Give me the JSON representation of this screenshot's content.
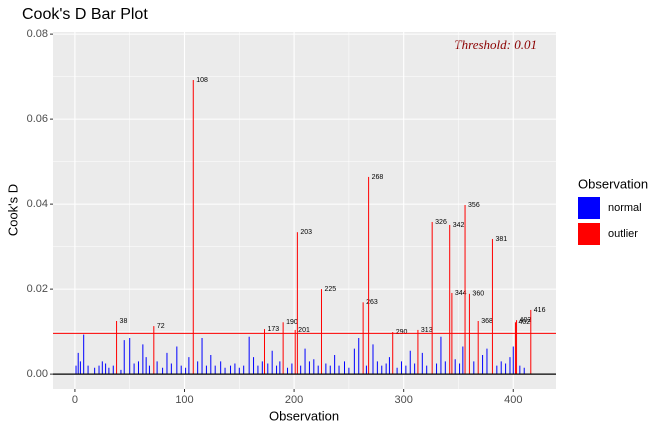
{
  "chart_data": {
    "type": "bar",
    "title": "Cook's D Bar Plot",
    "x_label": "Observation",
    "y_label": "Cook's D",
    "annotation": "Threshold: 0.01",
    "threshold": 0.0096,
    "threshold_color": "#ff0000",
    "baseline": 0,
    "legend_title": "Observation",
    "grid": true,
    "xlim": [
      -20,
      439
    ],
    "xticks": [
      0,
      100,
      200,
      300,
      400
    ],
    "ylim": [
      -0.0035,
      0.0805
    ],
    "yticks": [
      {
        "value": 0,
        "label": "0.00"
      },
      {
        "value": 0.02,
        "label": "0.02"
      },
      {
        "value": 0.04,
        "label": "0.04"
      },
      {
        "value": 0.06,
        "label": "0.06"
      },
      {
        "value": 0.08,
        "label": "0.08"
      }
    ],
    "series": [
      {
        "name": "normal",
        "color": "#0000ff",
        "x": [
          1,
          3,
          5,
          8,
          12,
          18,
          22,
          25,
          28,
          31,
          35,
          42,
          45,
          50,
          54,
          58,
          62,
          65,
          68,
          75,
          80,
          84,
          88,
          93,
          97,
          101,
          104,
          112,
          116,
          120,
          124,
          128,
          133,
          137,
          142,
          146,
          150,
          154,
          159,
          163,
          167,
          171,
          176,
          180,
          184,
          187,
          194,
          198,
          206,
          210,
          214,
          218,
          222,
          229,
          233,
          237,
          241,
          246,
          250,
          255,
          259,
          266,
          272,
          276,
          280,
          284,
          287,
          294,
          298,
          302,
          306,
          310,
          317,
          321,
          330,
          334,
          338,
          347,
          351,
          354,
          364,
          372,
          376,
          385,
          389,
          393,
          397,
          400,
          406,
          410
        ],
        "values": [
          0.002,
          0.005,
          0.003,
          0.0093,
          0.002,
          0.0015,
          0.002,
          0.003,
          0.0025,
          0.0015,
          0.002,
          0.001,
          0.008,
          0.0085,
          0.0025,
          0.003,
          0.007,
          0.004,
          0.002,
          0.003,
          0.0015,
          0.005,
          0.0025,
          0.0065,
          0.002,
          0.0015,
          0.004,
          0.003,
          0.0085,
          0.002,
          0.0045,
          0.002,
          0.003,
          0.0015,
          0.002,
          0.0025,
          0.0015,
          0.002,
          0.0088,
          0.004,
          0.002,
          0.003,
          0.0025,
          0.0055,
          0.002,
          0.003,
          0.0015,
          0.0025,
          0.002,
          0.006,
          0.003,
          0.0035,
          0.002,
          0.0025,
          0.002,
          0.0045,
          0.002,
          0.003,
          0.0015,
          0.006,
          0.0085,
          0.002,
          0.007,
          0.003,
          0.002,
          0.0025,
          0.004,
          0.0015,
          0.003,
          0.002,
          0.0055,
          0.0025,
          0.005,
          0.002,
          0.0025,
          0.0088,
          0.003,
          0.0035,
          0.0025,
          0.0065,
          0.003,
          0.0045,
          0.006,
          0.002,
          0.003,
          0.0025,
          0.004,
          0.0065,
          0.002,
          0.0015
        ]
      },
      {
        "name": "outlier",
        "color": "#ff0000",
        "x": [
          38,
          72,
          108,
          173,
          190,
          201,
          203,
          225,
          263,
          268,
          290,
          313,
          326,
          342,
          344,
          356,
          360,
          368,
          381,
          402,
          403,
          416
        ],
        "values": [
          0.0125,
          0.0113,
          0.0692,
          0.0106,
          0.0122,
          0.0104,
          0.0334,
          0.02,
          0.0169,
          0.0464,
          0.0099,
          0.0104,
          0.0358,
          0.0351,
          0.0191,
          0.0398,
          0.0189,
          0.0125,
          0.0318,
          0.0122,
          0.0127,
          0.0151
        ]
      }
    ]
  }
}
